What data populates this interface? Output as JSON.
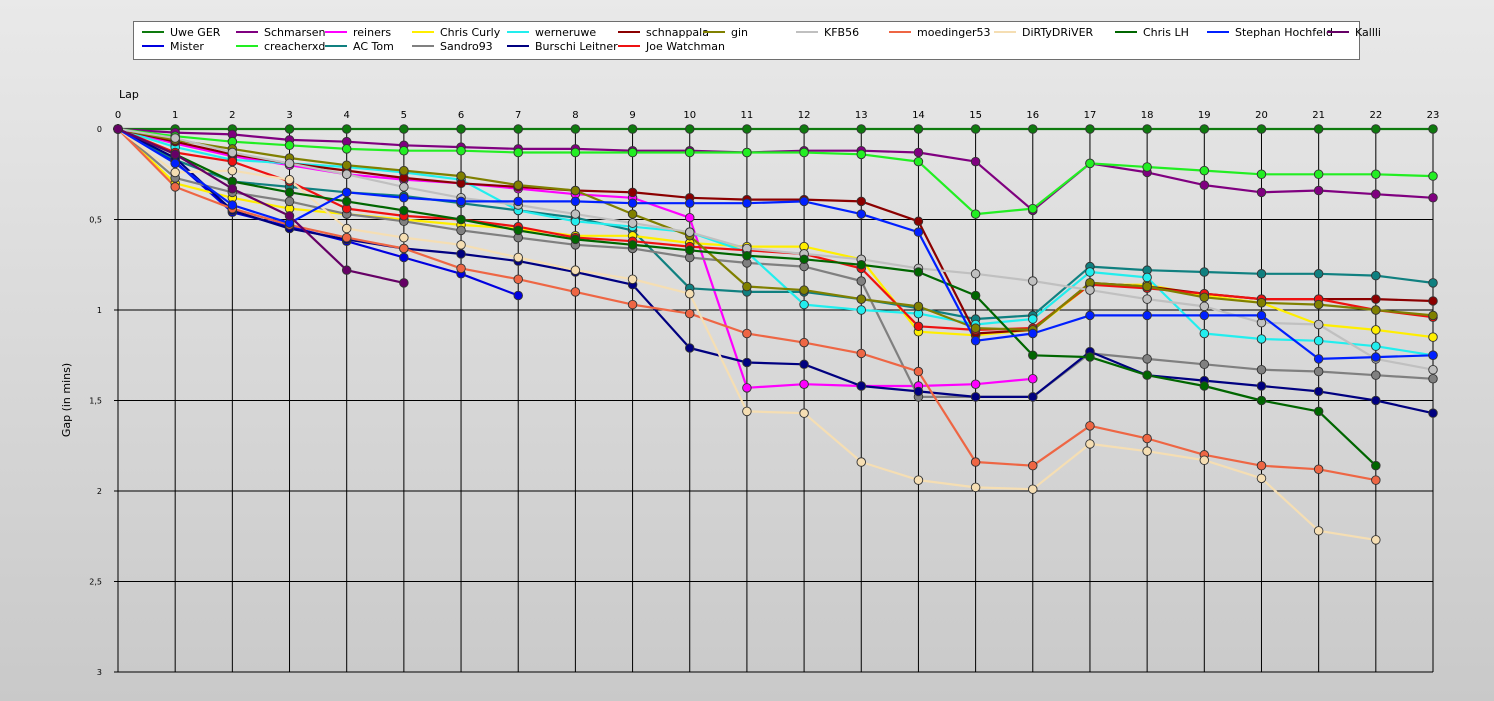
{
  "chart_data": {
    "type": "line",
    "xlabel": "Lap",
    "ylabel": "Gap (in mins)",
    "x": [
      0,
      1,
      2,
      3,
      4,
      5,
      6,
      7,
      8,
      9,
      10,
      11,
      12,
      13,
      14,
      15,
      16,
      17,
      18,
      19,
      20,
      21,
      22,
      23
    ],
    "ylim": [
      0,
      3
    ],
    "y_inverted": true,
    "y_ticks": [
      "0",
      "0,5",
      "1",
      "1,5",
      "2",
      "2,5",
      "3"
    ],
    "grid": true,
    "legend_position": "top",
    "series": [
      {
        "name": "Uwe GER",
        "color": "#0e7a0e",
        "values": [
          0,
          0,
          0,
          0,
          0,
          0,
          0,
          0,
          0,
          0,
          0,
          0,
          0,
          0,
          0,
          0,
          0,
          0,
          0,
          0,
          0,
          0,
          0,
          0
        ]
      },
      {
        "name": "Mister",
        "color": "#0000e0",
        "values": [
          0,
          0.18,
          0.46,
          0.54,
          0.62,
          0.71,
          0.8,
          0.92,
          null,
          null,
          null,
          null,
          null,
          null,
          null,
          null,
          null,
          null,
          null,
          null,
          null,
          null,
          null,
          null
        ]
      },
      {
        "name": "Schmarsen",
        "color": "#800080",
        "values": [
          0,
          0.02,
          0.03,
          0.06,
          0.07,
          0.09,
          0.1,
          0.11,
          0.11,
          0.12,
          0.12,
          0.13,
          0.12,
          0.12,
          0.13,
          0.18,
          0.45,
          0.19,
          0.24,
          0.31,
          0.35,
          0.34,
          0.36,
          0.38
        ]
      },
      {
        "name": "creacherxd",
        "color": "#22ee22",
        "values": [
          0,
          0.04,
          0.07,
          0.09,
          0.11,
          0.12,
          0.12,
          0.13,
          0.13,
          0.13,
          0.13,
          0.13,
          0.13,
          0.14,
          0.18,
          0.47,
          0.44,
          0.19,
          0.21,
          0.23,
          0.25,
          0.25,
          0.25,
          0.26
        ]
      },
      {
        "name": "reiners",
        "color": "#ff00ff",
        "values": [
          0,
          0.08,
          0.15,
          0.2,
          0.25,
          0.28,
          0.3,
          0.33,
          0.36,
          0.38,
          0.49,
          1.43,
          1.41,
          1.42,
          1.42,
          1.41,
          1.38,
          null,
          null,
          null,
          null,
          null,
          null,
          null
        ]
      },
      {
        "name": "AC Tom",
        "color": "#108080",
        "values": [
          0,
          0.17,
          0.29,
          0.32,
          0.35,
          0.37,
          0.41,
          0.45,
          0.49,
          0.56,
          0.88,
          0.9,
          0.9,
          0.94,
          0.99,
          1.05,
          1.03,
          0.76,
          0.78,
          0.79,
          0.8,
          0.8,
          0.81,
          0.85
        ]
      },
      {
        "name": "Chris Curly",
        "color": "#ffee00",
        "values": [
          0,
          0.3,
          0.38,
          0.44,
          0.47,
          0.5,
          0.53,
          0.55,
          0.59,
          0.59,
          0.63,
          0.65,
          0.65,
          0.72,
          1.12,
          1.14,
          1.11,
          0.86,
          0.86,
          0.92,
          0.96,
          1.08,
          1.11,
          1.15
        ]
      },
      {
        "name": "Sandro93",
        "color": "#808080",
        "values": [
          0,
          0.27,
          0.35,
          0.4,
          0.47,
          0.51,
          0.56,
          0.6,
          0.64,
          0.66,
          0.71,
          0.74,
          0.76,
          0.84,
          1.48,
          1.48,
          1.48,
          1.24,
          1.27,
          1.3,
          1.33,
          1.34,
          1.36,
          1.38
        ]
      },
      {
        "name": "werneruwe",
        "color": "#22eeee",
        "values": [
          0,
          0.1,
          0.17,
          0.19,
          0.21,
          0.24,
          0.28,
          0.45,
          0.51,
          0.54,
          0.57,
          0.68,
          0.97,
          1.0,
          1.02,
          1.08,
          1.05,
          0.79,
          0.82,
          1.13,
          1.16,
          1.17,
          1.2,
          1.25
        ]
      },
      {
        "name": "Burschi Leitner",
        "color": "#000080",
        "values": [
          0,
          0.16,
          0.45,
          0.55,
          0.61,
          0.66,
          0.69,
          0.73,
          0.79,
          0.86,
          1.21,
          1.29,
          1.3,
          1.42,
          1.45,
          1.48,
          1.48,
          1.23,
          1.36,
          1.39,
          1.42,
          1.45,
          1.5,
          1.57
        ]
      },
      {
        "name": "schnappala",
        "color": "#8b0000",
        "values": [
          0,
          0.07,
          0.14,
          0.19,
          0.23,
          0.27,
          0.3,
          0.32,
          0.34,
          0.35,
          0.38,
          0.39,
          0.39,
          0.4,
          0.51,
          1.13,
          1.11,
          0.85,
          0.87,
          0.91,
          0.94,
          0.94,
          0.94,
          0.95
        ]
      },
      {
        "name": "Joe Watchman",
        "color": "#ee1111",
        "values": [
          0,
          0.13,
          0.18,
          0.29,
          0.44,
          0.48,
          0.5,
          0.54,
          0.6,
          0.62,
          0.65,
          0.67,
          0.69,
          0.77,
          1.09,
          1.11,
          1.1,
          0.86,
          0.88,
          0.91,
          0.94,
          0.94,
          1.0,
          1.04
        ]
      },
      {
        "name": "gin",
        "color": "#808000",
        "values": [
          0,
          0.06,
          0.11,
          0.16,
          0.2,
          0.23,
          0.26,
          0.31,
          0.34,
          0.47,
          0.59,
          0.87,
          0.89,
          0.94,
          0.98,
          1.1,
          1.11,
          0.85,
          0.87,
          0.93,
          0.96,
          0.97,
          1.0,
          1.03
        ]
      },
      {
        "name": "KFB56",
        "color": "#c0c0c0",
        "values": [
          0,
          0.05,
          0.13,
          0.19,
          0.25,
          0.32,
          0.38,
          0.42,
          0.47,
          0.52,
          0.57,
          0.66,
          0.69,
          0.72,
          0.77,
          0.8,
          0.84,
          0.89,
          0.94,
          0.98,
          1.07,
          1.08,
          1.27,
          1.33
        ]
      },
      {
        "name": "moedinger53",
        "color": "#ee6644",
        "values": [
          0,
          0.32,
          0.44,
          0.53,
          0.6,
          0.66,
          0.77,
          0.83,
          0.9,
          0.97,
          1.02,
          1.13,
          1.18,
          1.24,
          1.34,
          1.84,
          1.86,
          1.64,
          1.71,
          1.8,
          1.86,
          1.88,
          1.94,
          null
        ]
      },
      {
        "name": "DiRTyDRiVER",
        "color": "#f5deb3",
        "values": [
          0,
          0.24,
          0.23,
          0.28,
          0.55,
          0.6,
          0.64,
          0.71,
          0.78,
          0.83,
          0.91,
          1.56,
          1.57,
          1.84,
          1.94,
          1.98,
          1.99,
          1.74,
          1.78,
          1.83,
          1.93,
          2.22,
          2.27,
          null
        ]
      },
      {
        "name": "Chris LH",
        "color": "#006600",
        "values": [
          0,
          0.14,
          0.29,
          0.35,
          0.4,
          0.45,
          0.5,
          0.56,
          0.61,
          0.64,
          0.67,
          0.7,
          0.72,
          0.75,
          0.79,
          0.92,
          1.25,
          1.26,
          1.36,
          1.42,
          1.5,
          1.56,
          1.86,
          null
        ]
      },
      {
        "name": "Stephan Hochfeld",
        "color": "#0020ff",
        "values": [
          0,
          0.19,
          0.42,
          0.52,
          0.35,
          0.38,
          0.4,
          0.4,
          0.4,
          0.41,
          0.41,
          0.41,
          0.4,
          0.47,
          0.57,
          1.17,
          1.13,
          1.03,
          1.03,
          1.03,
          1.03,
          1.27,
          1.26,
          1.25
        ]
      },
      {
        "name": "Kallli",
        "color": "#660066",
        "values": [
          0,
          0.14,
          0.33,
          0.48,
          0.78,
          0.85,
          null,
          null,
          null,
          null,
          null,
          null,
          null,
          null,
          null,
          null,
          null,
          null,
          null,
          null,
          null,
          null,
          null,
          null
        ]
      }
    ]
  }
}
